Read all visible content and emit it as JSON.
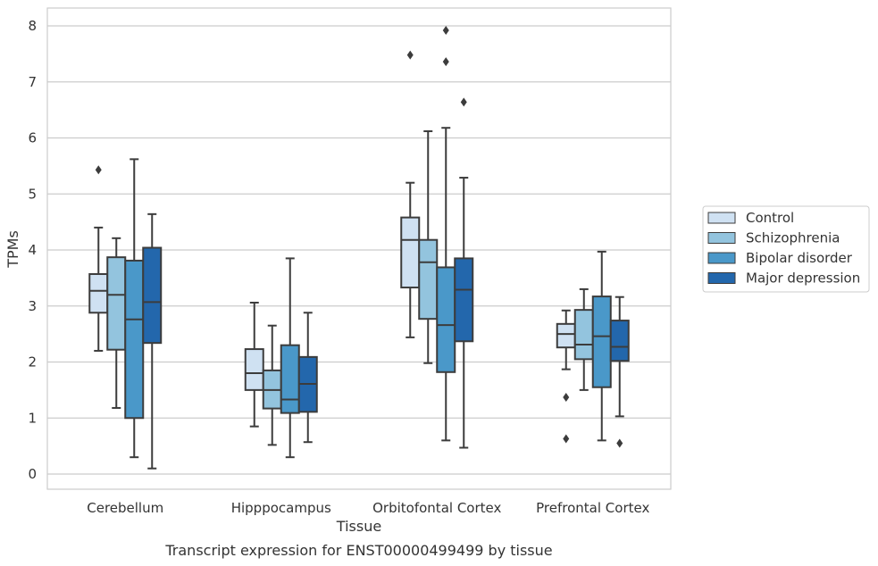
{
  "chart_data": {
    "type": "box",
    "xlabel": "Tissue",
    "ylabel": "TPMs",
    "caption": "Transcript expression for ENST00000499499 by tissue",
    "ylim": [
      -0.25,
      8.3
    ],
    "yticks": [
      0,
      1,
      2,
      3,
      4,
      5,
      6,
      7,
      8
    ],
    "grid": "horizontal",
    "legend_position": "right",
    "categories": [
      "Cerebellum",
      "Hipppocampus",
      "Orbitofontal Cortex",
      "Prefrontal Cortex"
    ],
    "series": [
      {
        "name": "Control",
        "color": "#cfe1f2",
        "boxes": [
          {
            "whisker_low": 2.2,
            "q1": 2.88,
            "median": 3.27,
            "q3": 3.57,
            "whisker_high": 4.4,
            "outliers": [
              5.43
            ]
          },
          {
            "whisker_low": 0.85,
            "q1": 1.5,
            "median": 1.8,
            "q3": 2.23,
            "whisker_high": 3.06,
            "outliers": []
          },
          {
            "whisker_low": 2.44,
            "q1": 3.33,
            "median": 4.18,
            "q3": 4.58,
            "whisker_high": 5.2,
            "outliers": [
              7.48
            ]
          },
          {
            "whisker_low": 1.87,
            "q1": 2.26,
            "median": 2.5,
            "q3": 2.68,
            "whisker_high": 2.92,
            "outliers": [
              1.37,
              0.63
            ]
          }
        ]
      },
      {
        "name": "Schizophrenia",
        "color": "#93c4de",
        "boxes": [
          {
            "whisker_low": 1.18,
            "q1": 2.22,
            "median": 3.2,
            "q3": 3.87,
            "whisker_high": 4.21,
            "outliers": []
          },
          {
            "whisker_low": 0.52,
            "q1": 1.17,
            "median": 1.5,
            "q3": 1.85,
            "whisker_high": 2.65,
            "outliers": []
          },
          {
            "whisker_low": 1.98,
            "q1": 2.77,
            "median": 3.78,
            "q3": 4.18,
            "whisker_high": 6.12,
            "outliers": []
          },
          {
            "whisker_low": 1.5,
            "q1": 2.05,
            "median": 2.31,
            "q3": 2.93,
            "whisker_high": 3.3,
            "outliers": []
          }
        ]
      },
      {
        "name": "Bipolar disorder",
        "color": "#4a98c9",
        "boxes": [
          {
            "whisker_low": 0.3,
            "q1": 1.0,
            "median": 2.76,
            "q3": 3.81,
            "whisker_high": 5.62,
            "outliers": []
          },
          {
            "whisker_low": 0.3,
            "q1": 1.09,
            "median": 1.33,
            "q3": 2.3,
            "whisker_high": 3.85,
            "outliers": []
          },
          {
            "whisker_low": 0.6,
            "q1": 1.82,
            "median": 2.66,
            "q3": 3.69,
            "whisker_high": 6.18,
            "outliers": [
              7.92,
              7.36
            ]
          },
          {
            "whisker_low": 0.6,
            "q1": 1.55,
            "median": 2.46,
            "q3": 3.17,
            "whisker_high": 3.97,
            "outliers": []
          }
        ]
      },
      {
        "name": "Major depression",
        "color": "#2367ac",
        "boxes": [
          {
            "whisker_low": 0.1,
            "q1": 2.34,
            "median": 3.07,
            "q3": 4.04,
            "whisker_high": 4.64,
            "outliers": []
          },
          {
            "whisker_low": 0.57,
            "q1": 1.11,
            "median": 1.61,
            "q3": 2.09,
            "whisker_high": 2.88,
            "outliers": []
          },
          {
            "whisker_low": 0.47,
            "q1": 2.37,
            "median": 3.29,
            "q3": 3.85,
            "whisker_high": 5.29,
            "outliers": [
              6.64
            ]
          },
          {
            "whisker_low": 1.03,
            "q1": 2.02,
            "median": 2.27,
            "q3": 2.74,
            "whisker_high": 3.16,
            "outliers": [
              0.55
            ]
          }
        ]
      }
    ]
  }
}
